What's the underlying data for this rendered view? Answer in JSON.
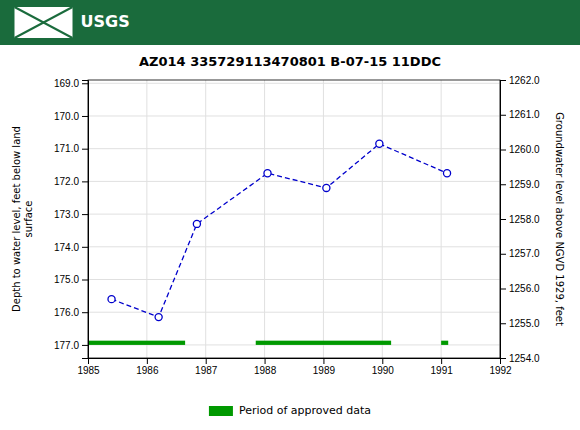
{
  "chart_data": {
    "type": "line",
    "title": "AZ014 335729113470801 B-07-15 11DDC",
    "annotations": [
      "USGS"
    ],
    "x": [
      1985.4,
      1986.2,
      1986.85,
      1988.05,
      1989.05,
      1989.95,
      1991.1
    ],
    "values": [
      175.6,
      176.15,
      173.3,
      171.75,
      172.2,
      170.85,
      171.75
    ],
    "color": "#0000cc",
    "marker": "circle",
    "line_style": "dashed",
    "xlim": [
      1985,
      1992
    ],
    "xticks": [
      1985,
      1986,
      1987,
      1988,
      1989,
      1990,
      1991,
      1992
    ],
    "ylim": [
      177.4,
      168.9
    ],
    "yticks": [
      {
        "value": 169.0,
        "label": "169.0"
      },
      {
        "value": 170.0,
        "label": "170.0"
      },
      {
        "value": 171.0,
        "label": "171.0"
      },
      {
        "value": 172.0,
        "label": "172.0"
      },
      {
        "value": 173.0,
        "label": "173.0"
      },
      {
        "value": 174.0,
        "label": "174.0"
      },
      {
        "value": 175.0,
        "label": "175.0"
      },
      {
        "value": 176.0,
        "label": "176.0"
      },
      {
        "value": 177.0,
        "label": "177.0"
      }
    ],
    "y2lim": [
      1254.0,
      1262.0
    ],
    "y2ticks": [
      {
        "value": 1254.0,
        "label": "1254.0"
      },
      {
        "value": 1255.0,
        "label": "1255.0"
      },
      {
        "value": 1256.0,
        "label": "1256.0"
      },
      {
        "value": 1257.0,
        "label": "1257.0"
      },
      {
        "value": 1258.0,
        "label": "1258.0"
      },
      {
        "value": 1259.0,
        "label": "1259.0"
      },
      {
        "value": 1260.0,
        "label": "1260.0"
      },
      {
        "value": 1261.0,
        "label": "1261.0"
      },
      {
        "value": 1262.0,
        "label": "1262.0"
      }
    ],
    "ylabel": "Depth to water level, feet below land\nsurface",
    "y2label": "Groundwater level above NGVD 1929, feet",
    "grid": true,
    "legend": "bottom",
    "periods": {
      "name": "Period of approved data",
      "color": "#009900",
      "x_start": [
        1985.0,
        1987.85,
        1991.0
      ],
      "x_end": [
        1986.65,
        1990.15,
        1991.12
      ],
      "y": 177.0,
      "thickness": 0.13
    }
  }
}
